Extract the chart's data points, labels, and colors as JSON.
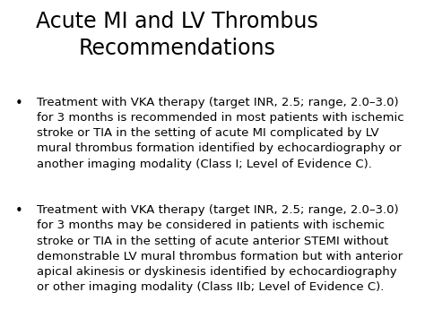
{
  "title_line1": "Acute MI and LV Thrombus",
  "title_line2": "Recommendations",
  "title_fontsize": 17,
  "body_fontsize": 9.5,
  "background_color": "#ffffff",
  "text_color": "#000000",
  "bullet1_normal": "Treatment with VKA therapy (target INR, 2.5; range, 2.0–3.0)\nfor 3 months is recommended in most patients with ischemic\nstroke or TIA in the setting of acute MI complicated by LV\nmural thrombus formation identified by echocardiography or\nanother imaging modality ",
  "bullet1_italic_underline": "(Class I; Level of Evidence C).",
  "bullet2_normal": "Treatment with VKA therapy (target INR, 2.5; range, 2.0–3.0)\nfor 3 months may be considered in patients with ischemic\nstroke or TIA in the setting of acute anterior STEMI without\ndemonstrable LV mural thrombus formation but with anterior\napical akinesis or dyskinesis identified by echocardiography\nor other imaging modality ",
  "bullet2_italic_underline": "(Class IIb; Level of Evidence C)."
}
